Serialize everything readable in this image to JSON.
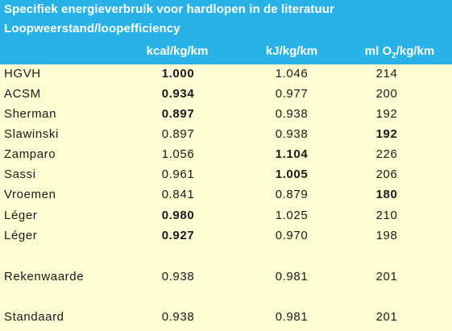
{
  "header": {
    "title": "Specifiek energieverbruik voor hardlopen in de literatuur",
    "subtitle": "Loopweerstand/loopefficiency",
    "columns": {
      "kcal": "kcal/kg/km",
      "kj": "kJ/kg/km",
      "o2_prefix": "ml O",
      "o2_sub": "2",
      "o2_suffix": "/kg/km"
    }
  },
  "rows": [
    {
      "name": "HGVH",
      "kcal": "1.000",
      "kj": "1.046",
      "o2": "214"
    },
    {
      "name": "ACSM",
      "kcal": "0.934",
      "kj": "0.977",
      "o2": "200"
    },
    {
      "name": "Sherman",
      "kcal": "0.897",
      "kj": "0.938",
      "o2": "192"
    },
    {
      "name": "Slawinski",
      "kcal": "0.897",
      "kj": "0.938",
      "o2": "192"
    },
    {
      "name": "Zamparo",
      "kcal": "1.056",
      "kj": "1.104",
      "o2": "226"
    },
    {
      "name": "Sassi",
      "kcal": "0.961",
      "kj": "1.005",
      "o2": "206"
    },
    {
      "name": "Vroemen",
      "kcal": "0.841",
      "kj": "0.879",
      "o2": "180"
    },
    {
      "name": "Léger",
      "kcal": "0.980",
      "kj": "1.025",
      "o2": "210"
    },
    {
      "name": "Léger",
      "kcal": "0.927",
      "kj": "0.970",
      "o2": "198"
    }
  ],
  "summary": [
    {
      "name": "Rekenwaarde",
      "kcal": "0.938",
      "kj": "0.981",
      "o2": "201"
    },
    {
      "name": "Standaard",
      "kcal": "0.938",
      "kj": "0.981",
      "o2": "201"
    }
  ],
  "colors": {
    "header_bg": "#27B3E8",
    "body_bg": "#FFFCD4",
    "header_text": "#FFFFFF"
  }
}
